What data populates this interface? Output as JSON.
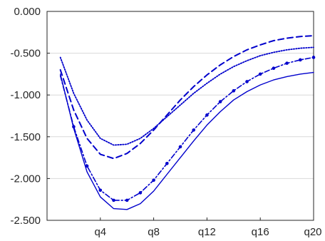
{
  "chart_data": {
    "type": "line",
    "title": "",
    "xlabel": "",
    "ylabel": "",
    "x": [
      1,
      2,
      3,
      4,
      5,
      6,
      7,
      8,
      9,
      10,
      11,
      12,
      13,
      14,
      15,
      16,
      17,
      18,
      19,
      20
    ],
    "xlim": [
      0,
      20
    ],
    "ylim": [
      -2.5,
      0.0
    ],
    "grid": "horizontal",
    "legend": "none",
    "x_ticks": [
      {
        "value": 4,
        "label": "q4"
      },
      {
        "value": 8,
        "label": "q8"
      },
      {
        "value": 12,
        "label": "q12"
      },
      {
        "value": 16,
        "label": "q16"
      },
      {
        "value": 20,
        "label": "q20"
      }
    ],
    "y_ticks": [
      {
        "value": 0.0,
        "label": "0.000"
      },
      {
        "value": -0.5,
        "label": "-0.500"
      },
      {
        "value": -1.0,
        "label": "-1.000"
      },
      {
        "value": -1.5,
        "label": "-1.500"
      },
      {
        "value": -2.0,
        "label": "-2.000"
      },
      {
        "value": -2.5,
        "label": "-2.500"
      }
    ],
    "series": [
      {
        "style": "solid",
        "color": "#0000CC",
        "values": [
          -0.75,
          -1.4,
          -1.92,
          -2.22,
          -2.36,
          -2.37,
          -2.3,
          -2.15,
          -1.95,
          -1.75,
          -1.55,
          -1.36,
          -1.2,
          -1.06,
          -0.96,
          -0.88,
          -0.82,
          -0.78,
          -0.75,
          -0.73
        ]
      },
      {
        "style": "dash-dot-marker",
        "color": "#0000CC",
        "values": [
          -0.77,
          -1.38,
          -1.85,
          -2.14,
          -2.26,
          -2.26,
          -2.17,
          -2.02,
          -1.82,
          -1.62,
          -1.42,
          -1.24,
          -1.08,
          -0.95,
          -0.84,
          -0.75,
          -0.68,
          -0.62,
          -0.58,
          -0.55
        ]
      },
      {
        "style": "dashed",
        "color": "#0000CC",
        "values": [
          -0.7,
          -1.18,
          -1.52,
          -1.71,
          -1.76,
          -1.7,
          -1.58,
          -1.42,
          -1.24,
          -1.06,
          -0.9,
          -0.76,
          -0.64,
          -0.54,
          -0.46,
          -0.4,
          -0.35,
          -0.32,
          -0.3,
          -0.29
        ]
      },
      {
        "style": "dotted",
        "color": "#0000CC",
        "values": [
          -0.55,
          -0.98,
          -1.3,
          -1.52,
          -1.6,
          -1.59,
          -1.52,
          -1.4,
          -1.26,
          -1.12,
          -0.98,
          -0.86,
          -0.75,
          -0.66,
          -0.59,
          -0.53,
          -0.49,
          -0.46,
          -0.44,
          -0.43
        ]
      }
    ]
  }
}
